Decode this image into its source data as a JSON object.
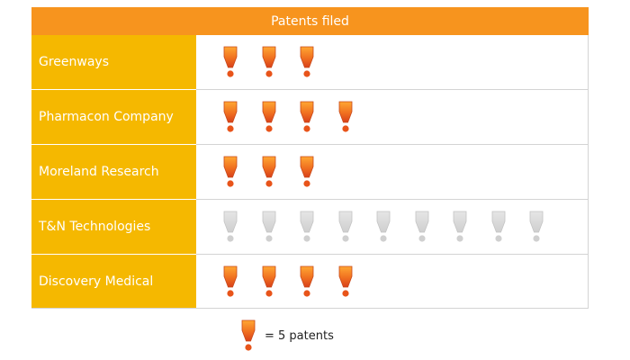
{
  "chart_data": {
    "type": "pictograph",
    "title": "Patents filed",
    "categories": [
      "Greenways",
      "Pharmacon Company",
      "Moreland Research",
      "T&N Technologies",
      "Discovery Medical"
    ],
    "values": [
      15,
      20,
      15,
      45,
      20
    ],
    "icon_counts": [
      3,
      4,
      3,
      9,
      4
    ],
    "units_per_icon": 5,
    "legend": {
      "text": "= 5 patents",
      "placement": "bottom-center"
    },
    "highlight_color": "#e8541a",
    "dimmed_color": "#d8d8d8",
    "dimmed_category": "T&N Technologies",
    "icon": "exclamation-icon"
  }
}
